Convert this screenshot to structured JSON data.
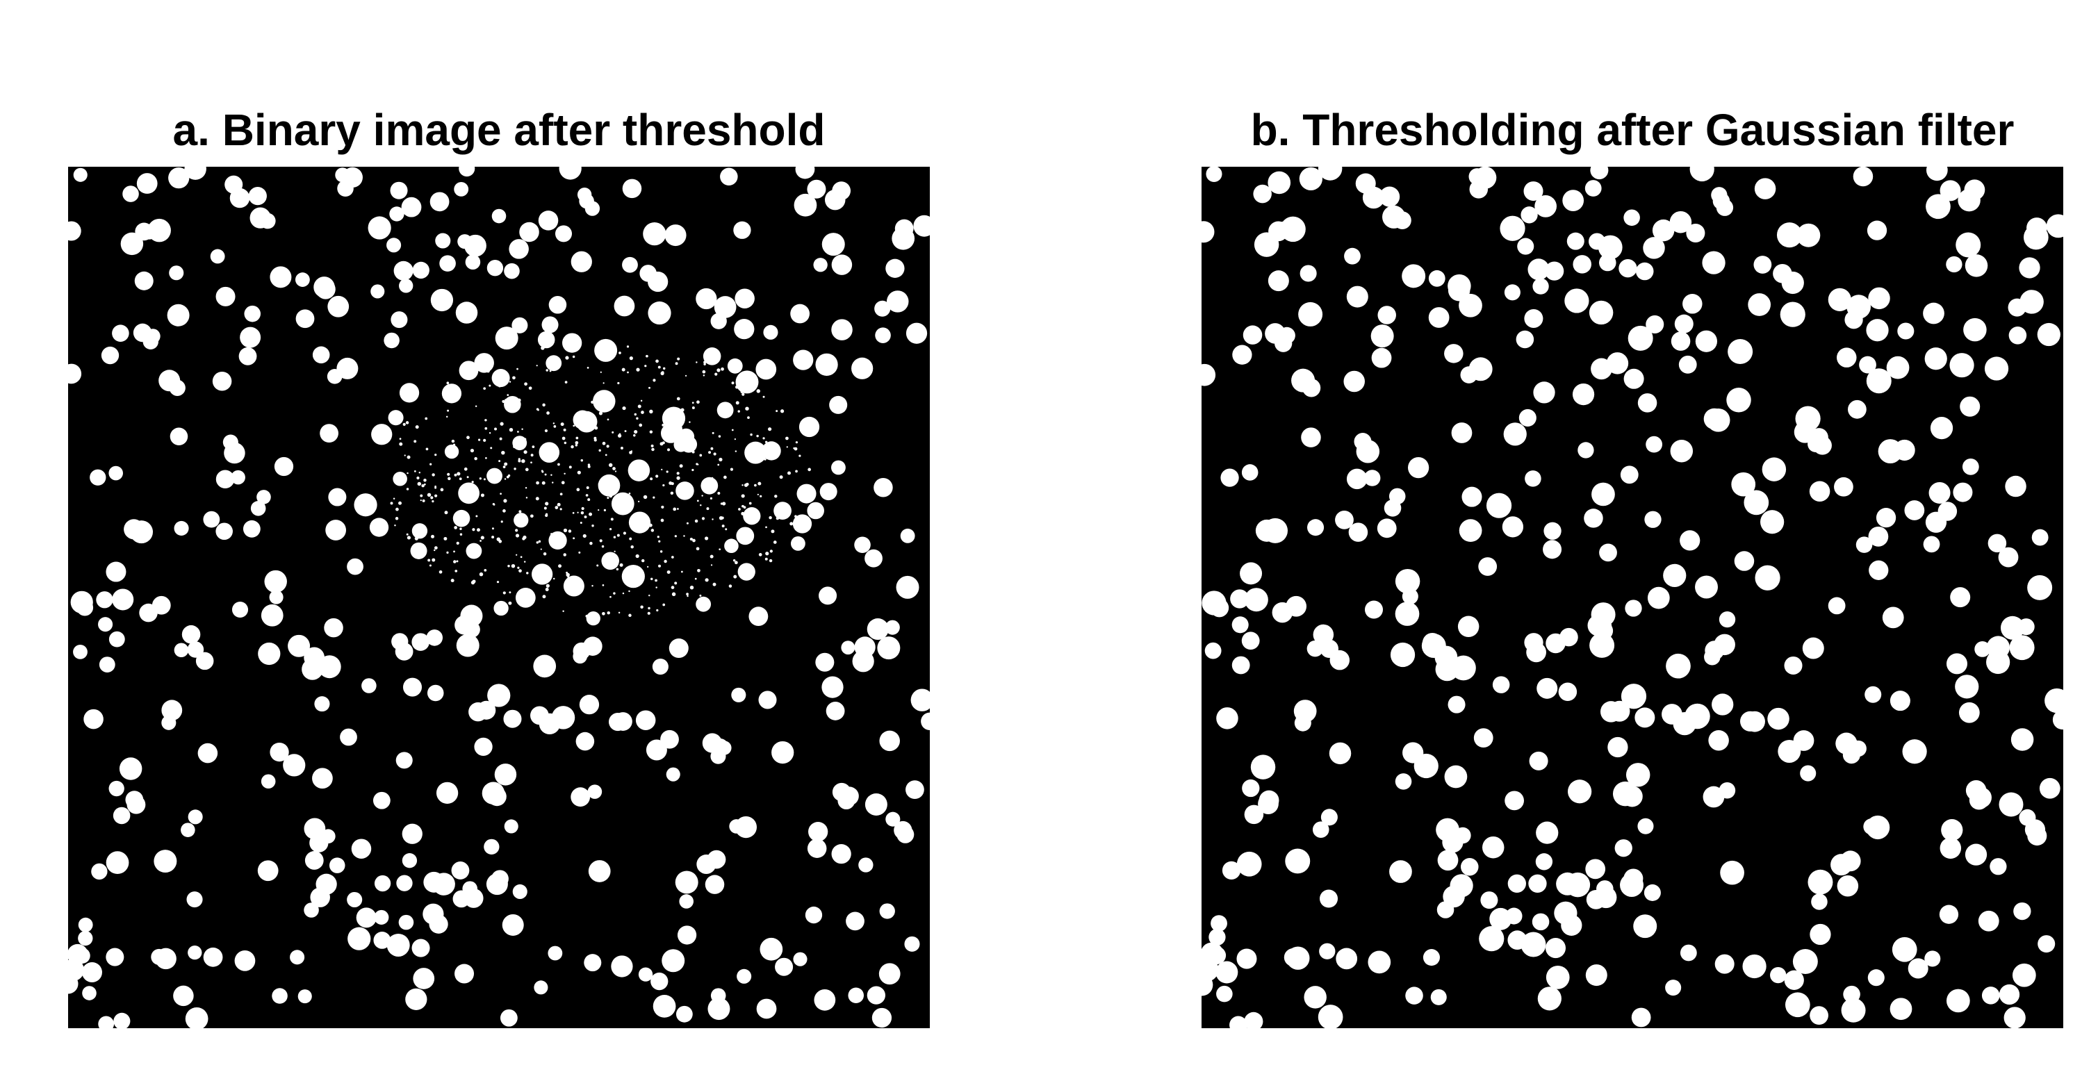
{
  "panels": [
    {
      "id": "a",
      "title": "a. Binary image after threshold",
      "background_color": "#000000",
      "foreground_color": "#ffffff",
      "has_noise_cluster": true
    },
    {
      "id": "b",
      "title": "b. Thresholding after Gaussian filter",
      "background_color": "#000000",
      "foreground_color": "#ffffff",
      "has_noise_cluster": false
    }
  ]
}
